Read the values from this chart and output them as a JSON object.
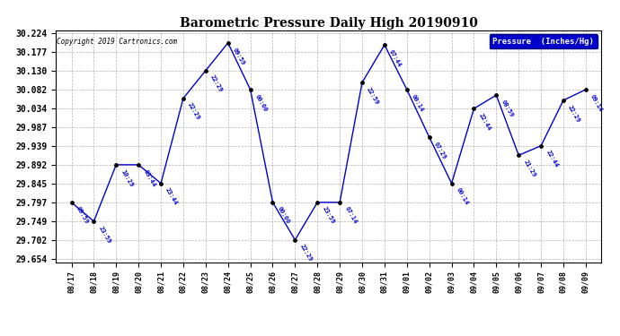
{
  "title": "Barometric Pressure Daily High 20190910",
  "copyright": "Copyright 2019 Cartronics.com",
  "legend_label": "Pressure  (Inches/Hg)",
  "background_color": "#ffffff",
  "plot_bg_color": "#ffffff",
  "line_color": "#0000cc",
  "point_color": "#000000",
  "label_color": "#0000cc",
  "grid_color": "#aaaaaa",
  "ylim": [
    29.654,
    30.224
  ],
  "yticks": [
    29.654,
    29.702,
    29.749,
    29.797,
    29.845,
    29.892,
    29.939,
    29.987,
    30.034,
    30.082,
    30.13,
    30.177,
    30.224
  ],
  "dates": [
    "08/17",
    "08/18",
    "08/19",
    "08/20",
    "08/21",
    "08/22",
    "08/23",
    "08/24",
    "08/25",
    "08/26",
    "08/27",
    "08/28",
    "08/29",
    "08/30",
    "08/31",
    "09/01",
    "09/02",
    "09/03",
    "09/04",
    "09/05",
    "09/06",
    "09/07",
    "09/08",
    "09/09"
  ],
  "values": [
    29.797,
    29.749,
    29.892,
    29.892,
    29.845,
    30.06,
    30.13,
    30.2,
    30.082,
    29.797,
    29.702,
    29.797,
    29.797,
    30.1,
    30.195,
    30.082,
    29.962,
    29.845,
    30.034,
    30.068,
    29.916,
    29.94,
    30.055,
    30.082
  ],
  "time_labels": [
    "09:59",
    "23:59",
    "10:29",
    "03:44",
    "23:44",
    "22:29",
    "22:29",
    "09:59",
    "00:00",
    "00:00",
    "22:29",
    "23:59",
    "07:14",
    "22:59",
    "07:44",
    "00:14",
    "07:29",
    "00:14",
    "22:44",
    "08:59",
    "21:29",
    "22:44",
    "22:29",
    "09:14"
  ]
}
